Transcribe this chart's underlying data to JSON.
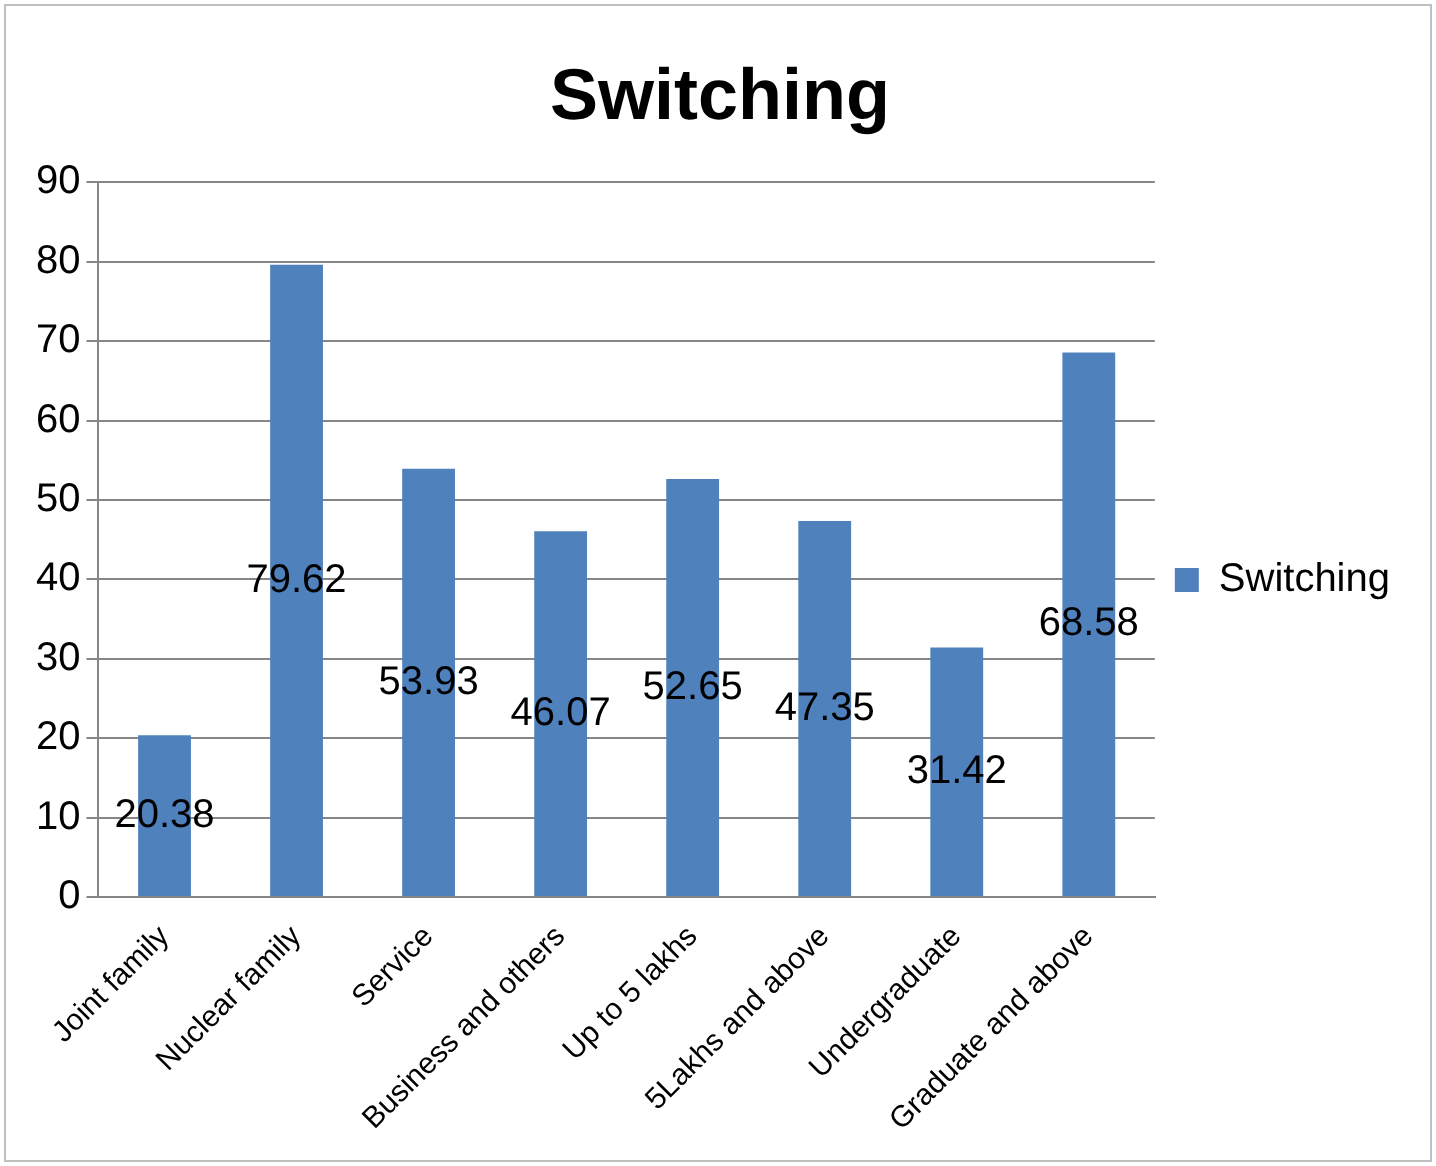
{
  "chart_data": {
    "type": "bar",
    "title": "Switching",
    "categories": [
      "Joint family",
      "Nuclear family",
      "Service",
      "Business and others",
      "Up to 5 lakhs",
      "5Lakhs and above",
      "Undergraduate",
      "Graduate and above"
    ],
    "series": [
      {
        "name": "Switching",
        "color": "#4f81bd",
        "values": [
          20.38,
          79.62,
          53.93,
          46.07,
          52.65,
          47.35,
          31.42,
          68.58
        ]
      }
    ],
    "ylim": [
      0,
      90
    ],
    "yticks": [
      0,
      10,
      20,
      30,
      40,
      50,
      60,
      70,
      80,
      90
    ],
    "grid": "y",
    "legend": "right",
    "data_labels": true
  }
}
